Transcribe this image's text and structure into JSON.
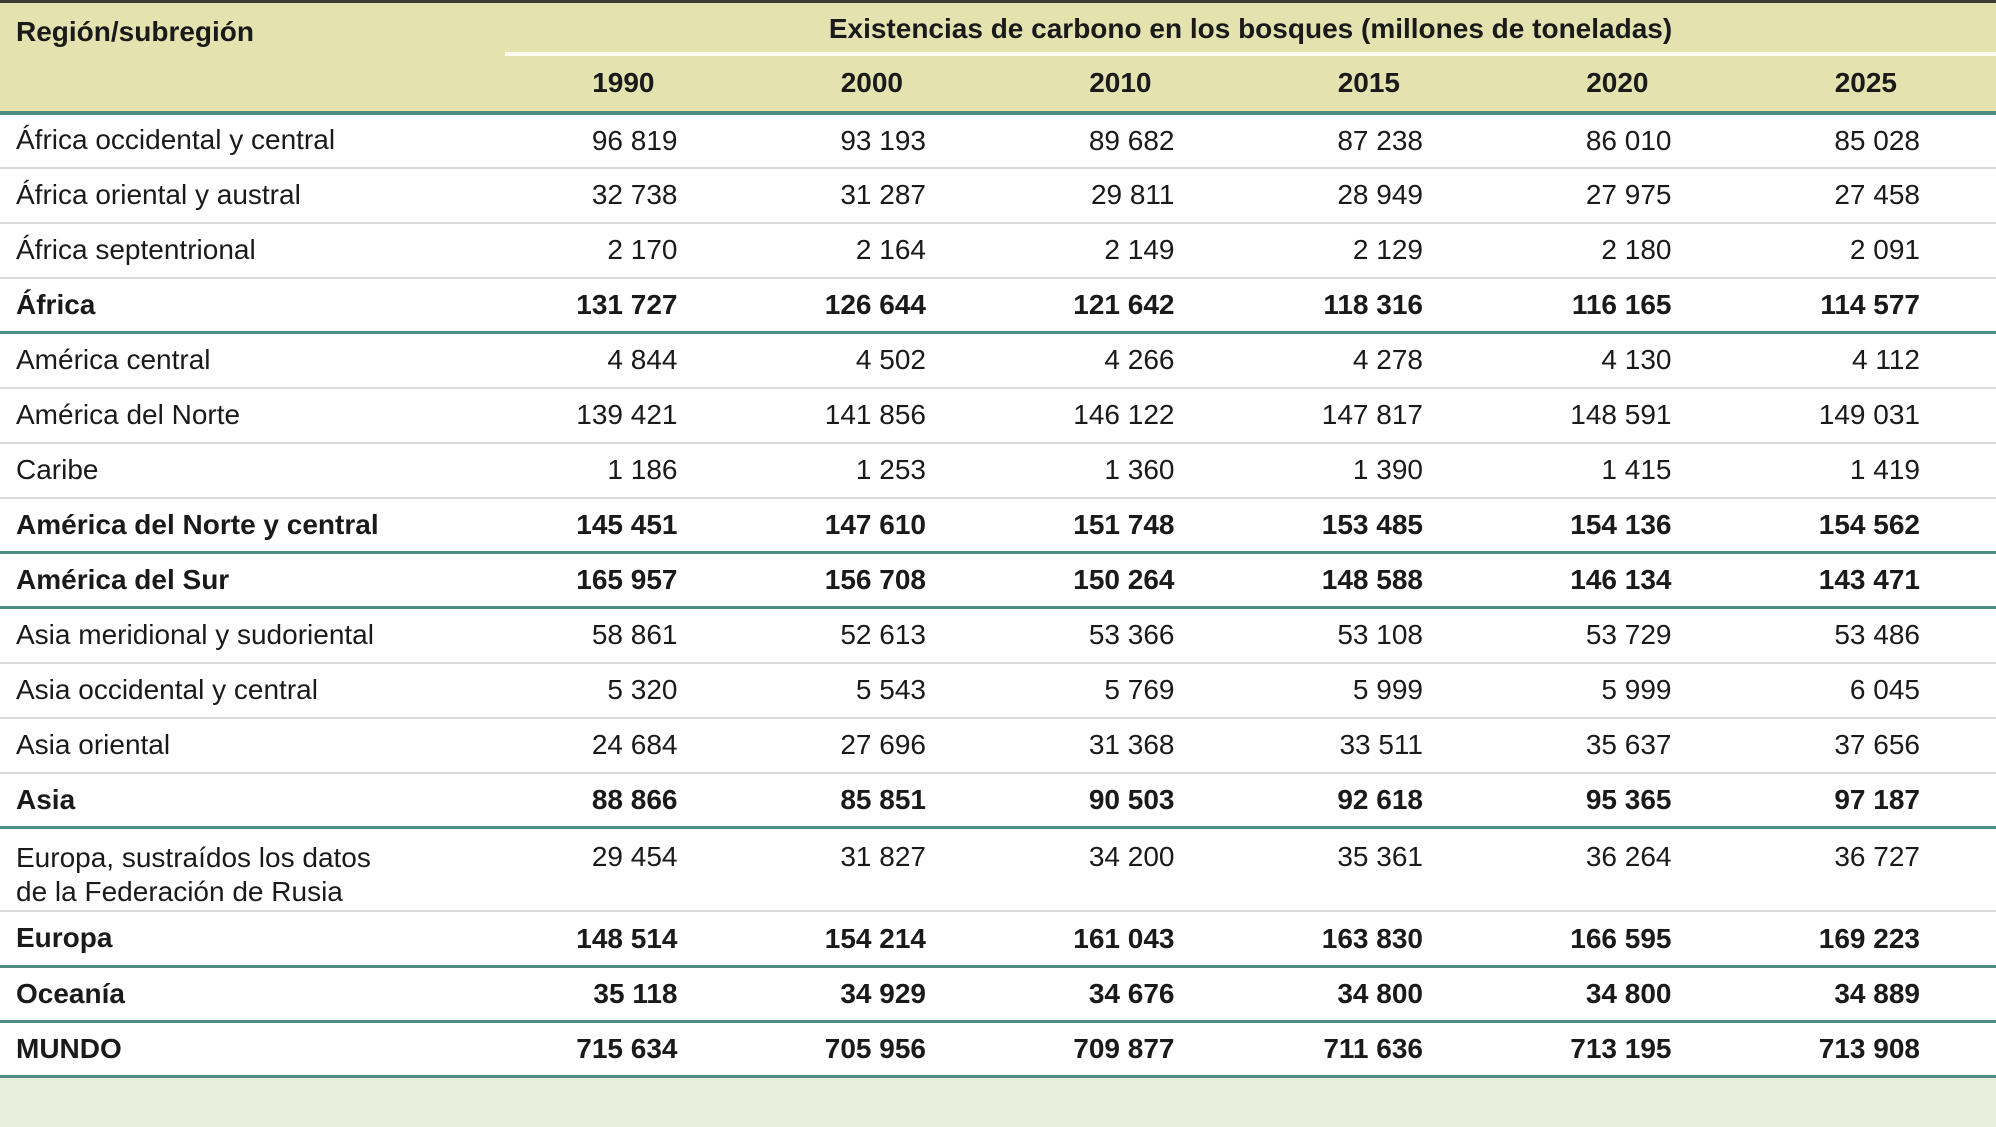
{
  "table": {
    "col_header": "Región/subregión",
    "group_header": "Existencias de carbono en los bosques (millones de toneladas)",
    "years": [
      "1990",
      "2000",
      "2010",
      "2015",
      "2020",
      "2025"
    ],
    "rows": [
      {
        "label": "África occidental y central",
        "bold": false,
        "values": [
          "96 819",
          "93 193",
          "89 682",
          "87 238",
          "86 010",
          "85 028"
        ]
      },
      {
        "label": "África oriental y austral",
        "bold": false,
        "values": [
          "32 738",
          "31 287",
          "29 811",
          "28 949",
          "27 975",
          "27 458"
        ]
      },
      {
        "label": "África septentrional",
        "bold": false,
        "values": [
          "2 170",
          "2 164",
          "2 149",
          "2 129",
          "2 180",
          "2 091"
        ]
      },
      {
        "label": "África",
        "bold": true,
        "values": [
          "131 727",
          "126 644",
          "121 642",
          "118 316",
          "116 165",
          "114 577"
        ]
      },
      {
        "label": "América central",
        "bold": false,
        "values": [
          "4 844",
          "4 502",
          "4 266",
          "4 278",
          "4 130",
          "4 112"
        ]
      },
      {
        "label": "América del Norte",
        "bold": false,
        "values": [
          "139 421",
          "141 856",
          "146 122",
          "147 817",
          "148 591",
          "149 031"
        ]
      },
      {
        "label": "Caribe",
        "bold": false,
        "values": [
          "1 186",
          "1 253",
          "1 360",
          "1 390",
          "1 415",
          "1 419"
        ]
      },
      {
        "label": "América del Norte y central",
        "bold": true,
        "values": [
          "145 451",
          "147 610",
          "151 748",
          "153 485",
          "154 136",
          "154 562"
        ]
      },
      {
        "label": "América del Sur",
        "bold": true,
        "values": [
          "165 957",
          "156 708",
          "150 264",
          "148 588",
          "146 134",
          "143 471"
        ]
      },
      {
        "label": "Asia meridional y sudoriental",
        "bold": false,
        "values": [
          "58 861",
          "52 613",
          "53 366",
          "53 108",
          "53 729",
          "53 486"
        ]
      },
      {
        "label": "Asia occidental y central",
        "bold": false,
        "values": [
          "5 320",
          "5 543",
          "5 769",
          "5 999",
          "5 999",
          "6 045"
        ]
      },
      {
        "label": "Asia oriental",
        "bold": false,
        "values": [
          "24 684",
          "27 696",
          "31 368",
          "33 511",
          "35 637",
          "37 656"
        ]
      },
      {
        "label": "Asia",
        "bold": true,
        "values": [
          "88 866",
          "85 851",
          "90 503",
          "92 618",
          "95 365",
          "97 187"
        ]
      },
      {
        "label": "Europa, sustraídos los datos\nde la Federación de Rusia",
        "bold": false,
        "values": [
          "29 454",
          "31 827",
          "34 200",
          "35 361",
          "36 264",
          "36 727"
        ]
      },
      {
        "label": "Europa",
        "bold": true,
        "values": [
          "148 514",
          "154 214",
          "161 043",
          "163 830",
          "166 595",
          "169 223"
        ]
      },
      {
        "label": "Oceanía",
        "bold": true,
        "values": [
          "35 118",
          "34 929",
          "34 676",
          "34 800",
          "34 800",
          "34 889"
        ]
      },
      {
        "label": "MUNDO",
        "bold": true,
        "values": [
          "715 634",
          "705 956",
          "709 877",
          "711 636",
          "713 195",
          "713 908"
        ]
      }
    ]
  },
  "colors": {
    "header_background": "#e4e3af",
    "teal_rule": "#4f8c83",
    "gray_rule": "#d9d9d9",
    "white_divider": "#fbfbf2",
    "top_rule": "#3c3c33",
    "bottom_strip": "#e8eedb",
    "text": "#1a1a1a"
  }
}
